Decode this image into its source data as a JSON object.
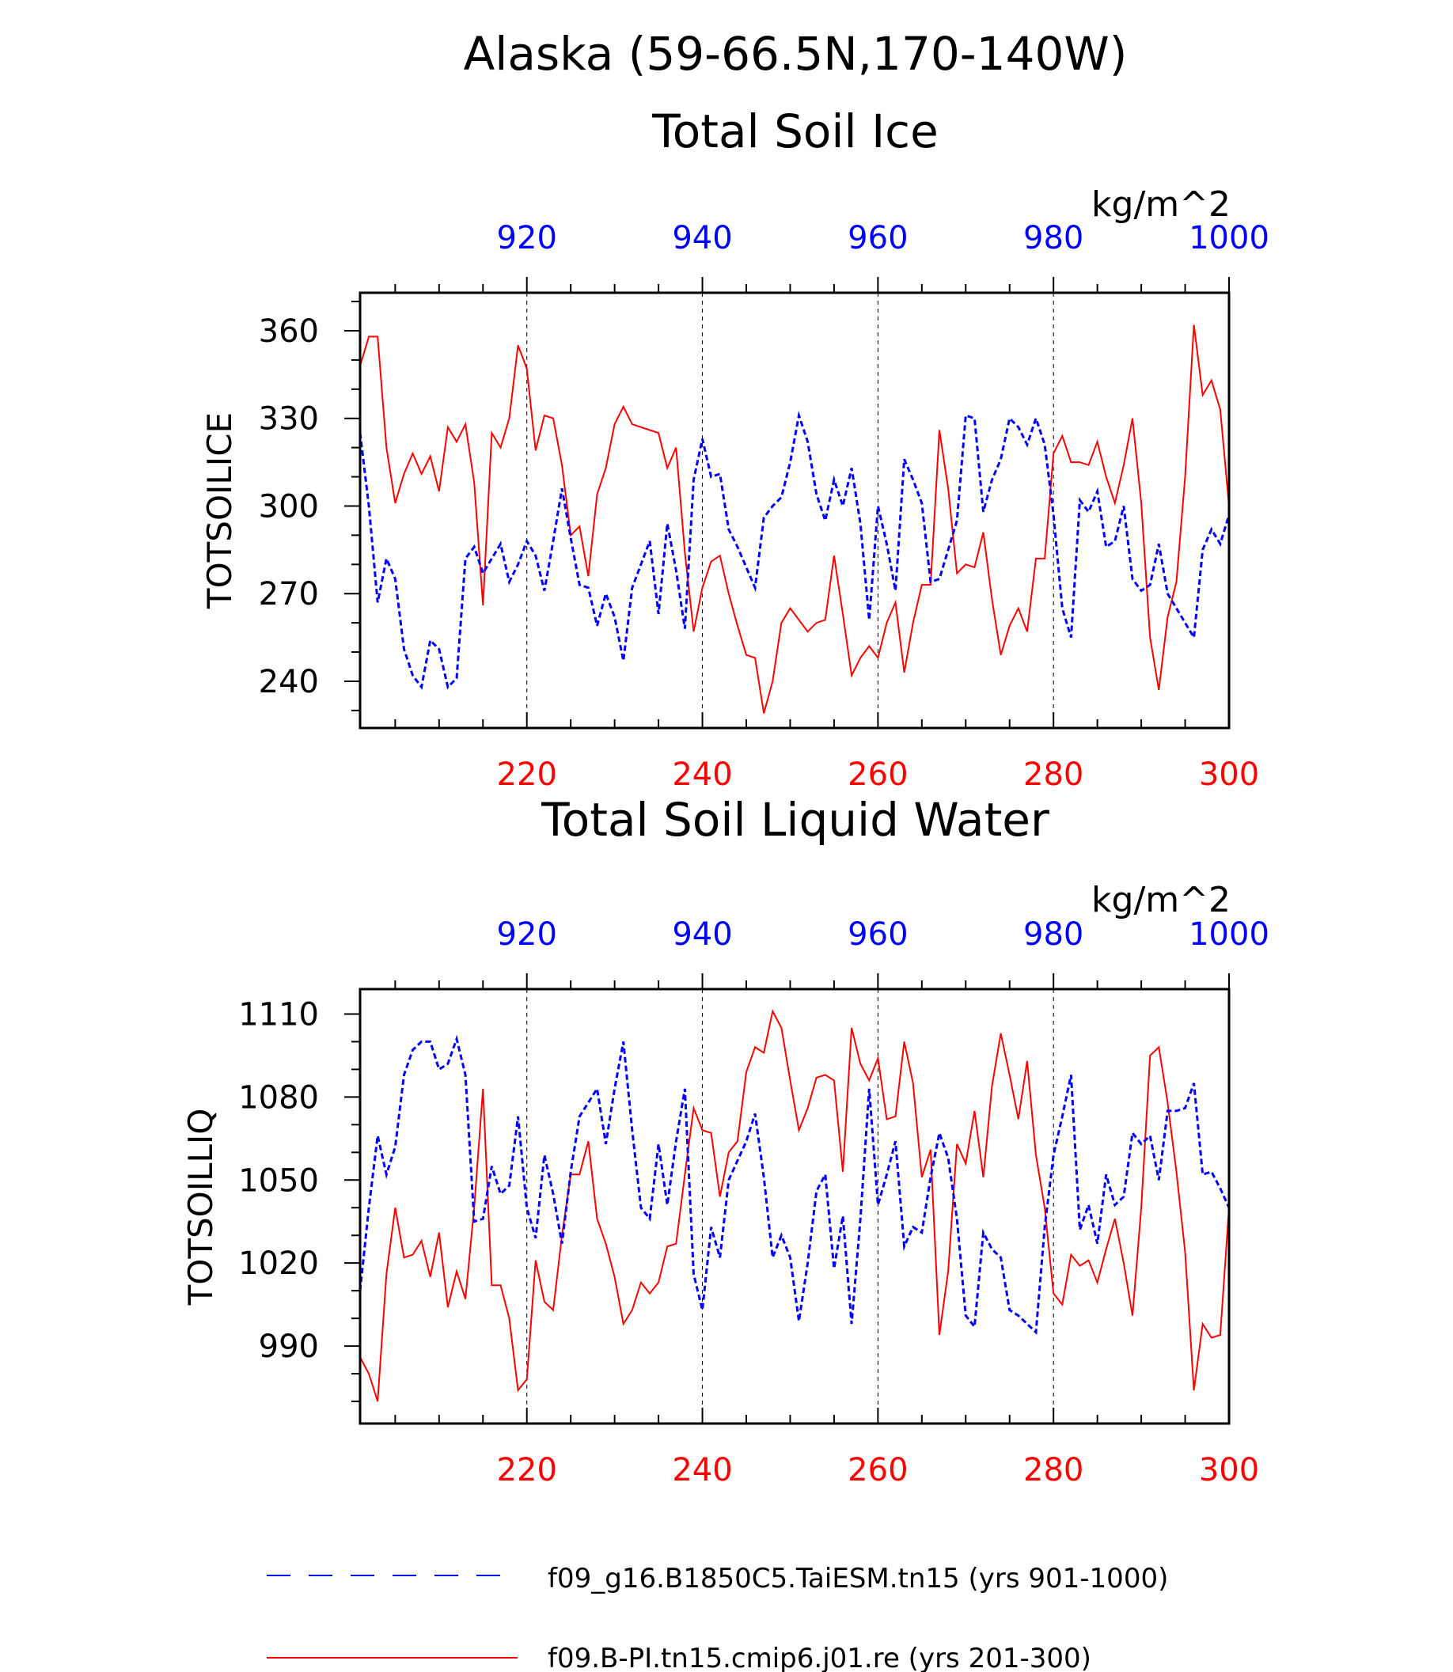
{
  "title_line1": "Alaska (59-66.5N,170-140W)",
  "colors": {
    "red": "#ff0000",
    "blue": "#0000ff",
    "black": "#000000"
  },
  "legend": [
    {
      "label": "f09_g16.B1850C5.TaiESM.tn15 (yrs 901-1000)",
      "color": "#0000ff",
      "dash": "dashed"
    },
    {
      "label": "f09.B-PI.tn15.cmip6.j01.re (yrs 201-300)",
      "color": "#ff0000",
      "dash": "solid"
    }
  ],
  "chart_data": [
    {
      "type": "line",
      "title": "Total Soil Ice",
      "ylabel": "TOTSOILICE",
      "units": "kg/m^2",
      "ylim": [
        224,
        373
      ],
      "yticks": [
        240,
        270,
        300,
        330,
        360
      ],
      "bottom_axis": {
        "range": [
          201,
          300
        ],
        "ticks": [
          220,
          240,
          260,
          280,
          300
        ],
        "color": "#ff0000"
      },
      "top_axis": {
        "range": [
          901,
          1000
        ],
        "ticks": [
          920,
          940,
          960,
          980,
          1000
        ],
        "color": "#0000ff"
      },
      "grid": "dashed-vertical",
      "series": [
        {
          "axis": "bottom",
          "color": "#ff0000",
          "style": "solid",
          "x": [
            201,
            202,
            203,
            204,
            205,
            206,
            207,
            208,
            209,
            210,
            211,
            212,
            213,
            214,
            215,
            216,
            217,
            218,
            219,
            220,
            221,
            222,
            223,
            224,
            225,
            226,
            227,
            228,
            229,
            230,
            231,
            232,
            233,
            234,
            235,
            236,
            237,
            238,
            239,
            240,
            241,
            242,
            243,
            244,
            245,
            246,
            247,
            248,
            249,
            250,
            251,
            252,
            253,
            254,
            255,
            256,
            257,
            258,
            259,
            260,
            261,
            262,
            263,
            264,
            265,
            266,
            267,
            268,
            269,
            270,
            271,
            272,
            273,
            274,
            275,
            276,
            277,
            278,
            279,
            280,
            281,
            282,
            283,
            284,
            285,
            286,
            287,
            288,
            289,
            290,
            291,
            292,
            293,
            294,
            295,
            296,
            297,
            298,
            299,
            300
          ],
          "y": [
            348,
            358,
            358,
            320,
            301,
            311,
            318,
            311,
            317,
            305,
            327,
            322,
            328,
            308,
            266,
            325,
            320,
            330,
            355,
            347,
            319,
            331,
            330,
            314,
            290,
            293,
            276,
            304,
            313,
            328,
            334,
            328,
            327,
            326,
            325,
            313,
            320,
            284,
            257,
            272,
            281,
            283,
            270,
            259,
            249,
            248,
            229,
            240,
            260,
            265,
            261,
            257,
            260,
            261,
            283,
            263,
            242,
            248,
            252,
            248,
            260,
            267,
            243,
            260,
            273,
            273,
            326,
            306,
            277,
            280,
            279,
            291,
            268,
            249,
            259,
            265,
            257,
            282,
            282,
            318,
            324,
            315,
            315,
            314,
            322,
            310,
            301,
            314,
            330,
            301,
            255,
            237,
            262,
            274,
            310,
            362,
            338,
            343,
            333,
            300
          ]
        },
        {
          "axis": "top",
          "color": "#0000ff",
          "style": "dashed",
          "x": [
            901,
            902,
            903,
            904,
            905,
            906,
            907,
            908,
            909,
            910,
            911,
            912,
            913,
            914,
            915,
            916,
            917,
            918,
            919,
            920,
            921,
            922,
            923,
            924,
            925,
            926,
            927,
            928,
            929,
            930,
            931,
            932,
            933,
            934,
            935,
            936,
            937,
            938,
            939,
            940,
            941,
            942,
            943,
            944,
            945,
            946,
            947,
            948,
            949,
            950,
            951,
            952,
            953,
            954,
            955,
            956,
            957,
            958,
            959,
            960,
            961,
            962,
            963,
            964,
            965,
            966,
            967,
            968,
            969,
            970,
            971,
            972,
            973,
            974,
            975,
            976,
            977,
            978,
            979,
            980,
            981,
            982,
            983,
            984,
            985,
            986,
            987,
            988,
            989,
            990,
            991,
            992,
            993,
            994,
            995,
            996,
            997,
            998,
            999,
            1000
          ],
          "y": [
            325,
            300,
            267,
            282,
            275,
            251,
            242,
            238,
            254,
            251,
            238,
            241,
            282,
            286,
            277,
            282,
            287,
            274,
            280,
            288,
            283,
            271,
            288,
            306,
            289,
            273,
            272,
            259,
            270,
            262,
            247,
            272,
            280,
            288,
            263,
            294,
            278,
            258,
            309,
            323,
            310,
            311,
            292,
            286,
            279,
            272,
            296,
            300,
            303,
            315,
            331,
            322,
            304,
            295,
            309,
            300,
            313,
            294,
            261,
            300,
            287,
            271,
            316,
            309,
            301,
            274,
            275,
            285,
            295,
            331,
            330,
            298,
            309,
            316,
            330,
            327,
            321,
            330,
            321,
            297,
            265,
            255,
            302,
            298,
            305,
            286,
            288,
            300,
            275,
            271,
            273,
            287,
            270,
            265,
            260,
            255,
            285,
            292,
            287,
            297
          ]
        }
      ]
    },
    {
      "type": "line",
      "title": "Total Soil Liquid Water",
      "ylabel": "TOTSOILLIQ",
      "units": "kg/m^2",
      "ylim": [
        962,
        1119
      ],
      "yticks": [
        990,
        1020,
        1050,
        1080,
        1110
      ],
      "bottom_axis": {
        "range": [
          201,
          300
        ],
        "ticks": [
          220,
          240,
          260,
          280,
          300
        ],
        "color": "#ff0000"
      },
      "top_axis": {
        "range": [
          901,
          1000
        ],
        "ticks": [
          920,
          940,
          960,
          980,
          1000
        ],
        "color": "#0000ff"
      },
      "grid": "dashed-vertical",
      "series": [
        {
          "axis": "bottom",
          "color": "#ff0000",
          "style": "solid",
          "x": [
            201,
            202,
            203,
            204,
            205,
            206,
            207,
            208,
            209,
            210,
            211,
            212,
            213,
            214,
            215,
            216,
            217,
            218,
            219,
            220,
            221,
            222,
            223,
            224,
            225,
            226,
            227,
            228,
            229,
            230,
            231,
            232,
            233,
            234,
            235,
            236,
            237,
            238,
            239,
            240,
            241,
            242,
            243,
            244,
            245,
            246,
            247,
            248,
            249,
            250,
            251,
            252,
            253,
            254,
            255,
            256,
            257,
            258,
            259,
            260,
            261,
            262,
            263,
            264,
            265,
            266,
            267,
            268,
            269,
            270,
            271,
            272,
            273,
            274,
            275,
            276,
            277,
            278,
            279,
            280,
            281,
            282,
            283,
            284,
            285,
            286,
            287,
            288,
            289,
            290,
            291,
            292,
            293,
            294,
            295,
            296,
            297,
            298,
            299,
            300
          ],
          "y": [
            986,
            980,
            970,
            1016,
            1040,
            1022,
            1023,
            1028,
            1015,
            1031,
            1004,
            1017,
            1007,
            1040,
            1083,
            1012,
            1012,
            1000,
            974,
            978,
            1021,
            1006,
            1003,
            1030,
            1052,
            1052,
            1064,
            1036,
            1027,
            1015,
            998,
            1003,
            1013,
            1009,
            1013,
            1026,
            1027,
            1052,
            1076,
            1068,
            1067,
            1044,
            1060,
            1064,
            1089,
            1098,
            1096,
            1111,
            1105,
            1086,
            1068,
            1076,
            1087,
            1088,
            1086,
            1053,
            1105,
            1092,
            1086,
            1094,
            1072,
            1073,
            1100,
            1085,
            1051,
            1061,
            994,
            1017,
            1063,
            1056,
            1075,
            1051,
            1084,
            1103,
            1088,
            1072,
            1093,
            1059,
            1040,
            1009,
            1005,
            1023,
            1019,
            1021,
            1013,
            1025,
            1036,
            1020,
            1001,
            1040,
            1095,
            1098,
            1078,
            1053,
            1024,
            974,
            998,
            993,
            994,
            1040
          ]
        },
        {
          "axis": "top",
          "color": "#0000ff",
          "style": "dashed",
          "x": [
            901,
            902,
            903,
            904,
            905,
            906,
            907,
            908,
            909,
            910,
            911,
            912,
            913,
            914,
            915,
            916,
            917,
            918,
            919,
            920,
            921,
            922,
            923,
            924,
            925,
            926,
            927,
            928,
            929,
            930,
            931,
            932,
            933,
            934,
            935,
            936,
            937,
            938,
            939,
            940,
            941,
            942,
            943,
            944,
            945,
            946,
            947,
            948,
            949,
            950,
            951,
            952,
            953,
            954,
            955,
            956,
            957,
            958,
            959,
            960,
            961,
            962,
            963,
            964,
            965,
            966,
            967,
            968,
            969,
            970,
            971,
            972,
            973,
            974,
            975,
            976,
            977,
            978,
            979,
            980,
            981,
            982,
            983,
            984,
            985,
            986,
            987,
            988,
            989,
            990,
            991,
            992,
            993,
            994,
            995,
            996,
            997,
            998,
            999,
            1000
          ],
          "y": [
            1010,
            1040,
            1066,
            1052,
            1062,
            1088,
            1097,
            1100,
            1100,
            1090,
            1092,
            1101,
            1088,
            1035,
            1036,
            1055,
            1045,
            1048,
            1073,
            1040,
            1029,
            1059,
            1045,
            1027,
            1053,
            1073,
            1078,
            1083,
            1063,
            1083,
            1100,
            1068,
            1040,
            1036,
            1063,
            1041,
            1064,
            1083,
            1016,
            1003,
            1033,
            1022,
            1050,
            1057,
            1064,
            1074,
            1051,
            1022,
            1030,
            1022,
            999,
            1020,
            1046,
            1052,
            1018,
            1037,
            998,
            1036,
            1083,
            1041,
            1052,
            1064,
            1026,
            1033,
            1031,
            1051,
            1067,
            1058,
            1036,
            1001,
            997,
            1031,
            1025,
            1022,
            1003,
            1001,
            998,
            995,
            1033,
            1059,
            1073,
            1088,
            1032,
            1041,
            1027,
            1052,
            1041,
            1044,
            1067,
            1063,
            1066,
            1050,
            1075,
            1075,
            1076,
            1085,
            1052,
            1053,
            1047,
            1040
          ]
        }
      ]
    }
  ]
}
